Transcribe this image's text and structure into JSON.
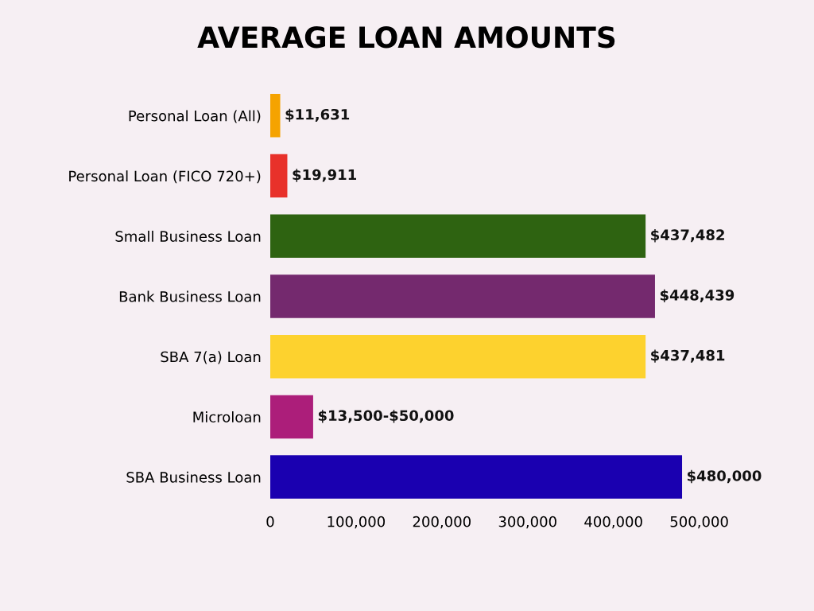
{
  "chart_data": {
    "type": "bar",
    "orientation": "horizontal",
    "title": "AVERAGE LOAN AMOUNTS",
    "categories": [
      "Personal Loan (All)",
      "Personal Loan (FICO 720+)",
      "Small Business Loan",
      "Bank Business Loan",
      "SBA 7(a) Loan",
      "Microloan",
      "SBA Business Loan"
    ],
    "values": [
      11631,
      19911,
      437482,
      448439,
      437481,
      50000,
      480000
    ],
    "value_labels": [
      "$11,631",
      "$19,911",
      "$437,482",
      "$448,439",
      "$437,481",
      "$13,500-$50,000",
      "$480,000"
    ],
    "colors": [
      "#f5a300",
      "#e8312a",
      "#2e6311",
      "#74296e",
      "#fdd22e",
      "#ac1e7a",
      "#1a00b0"
    ],
    "xlim": [
      0,
      500000
    ],
    "xticks": [
      0,
      {
        "value": 100000,
        "label": "100,000"
      },
      {
        "value": 200000,
        "label": "200,000"
      },
      {
        "value": 300000,
        "label": "300,000"
      },
      {
        "value": 400000,
        "label": "400,000"
      },
      {
        "value": 500000,
        "label": "500,000"
      }
    ],
    "grid": false,
    "legend": false
  }
}
